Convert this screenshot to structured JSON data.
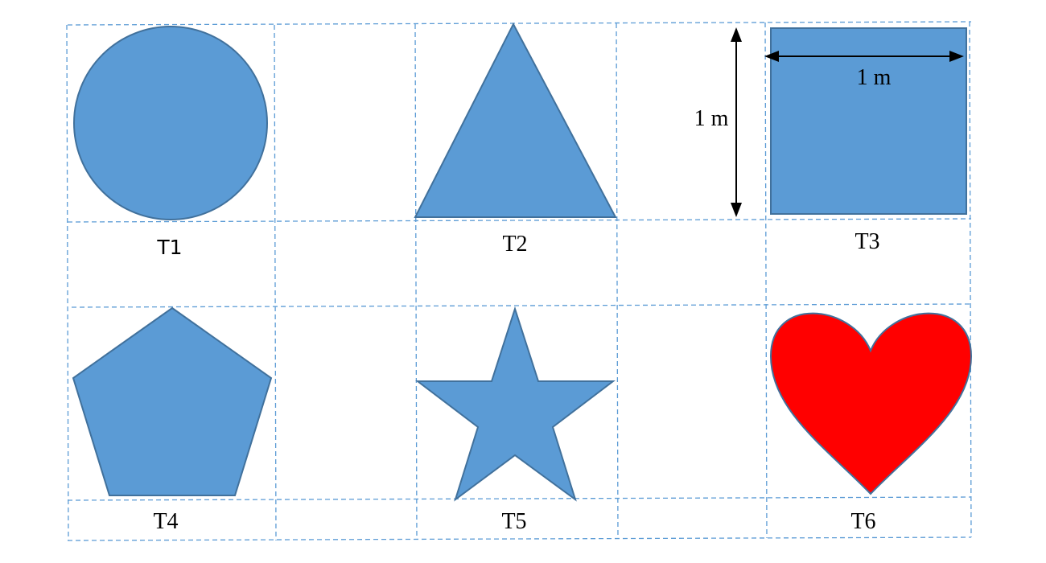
{
  "colors": {
    "shape_fill": "#5b9bd5",
    "shape_stroke": "#41719c",
    "heart_fill": "#ff0000",
    "grid": "#5b9bd5"
  },
  "shapes": [
    {
      "id": "T1",
      "shape": "circle",
      "label": "T1"
    },
    {
      "id": "T2",
      "shape": "triangle",
      "label": "T2"
    },
    {
      "id": "T3",
      "shape": "square",
      "label": "T3"
    },
    {
      "id": "T4",
      "shape": "pentagon",
      "label": "T4"
    },
    {
      "id": "T5",
      "shape": "star",
      "label": "T5"
    },
    {
      "id": "T6",
      "shape": "heart",
      "label": "T6"
    }
  ],
  "dimensions": {
    "height_label": "1 m",
    "width_label": "1 m"
  }
}
